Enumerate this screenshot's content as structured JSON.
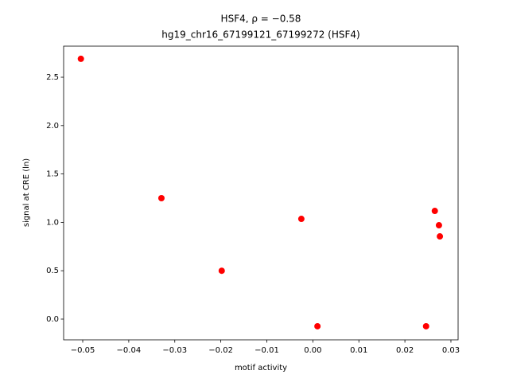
{
  "chart_data": {
    "type": "scatter",
    "title": "HSF4, ρ = −0.58",
    "subtitle": "hg19_chr16_67199121_67199272 (HSF4)",
    "x_label": "motif activity",
    "y_label": "signal at CRE (ln)",
    "color": "#ff0000",
    "x": [
      -0.0504,
      -0.0329,
      -0.0198,
      -0.0025,
      0.001,
      0.0246,
      0.0265,
      0.0274,
      0.0276
    ],
    "values": [
      2.69,
      1.25,
      0.5,
      1.036,
      -0.074,
      -0.074,
      1.118,
      0.97,
      0.855
    ],
    "xlim": [
      -0.05415,
      0.03156
    ],
    "ylim": [
      -0.214,
      2.821
    ],
    "xticks": [
      {
        "value": -0.05,
        "label": "−0.05"
      },
      {
        "value": -0.04,
        "label": "−0.04"
      },
      {
        "value": -0.03,
        "label": "−0.03"
      },
      {
        "value": -0.02,
        "label": "−0.02"
      },
      {
        "value": -0.01,
        "label": "−0.01"
      },
      {
        "value": 0,
        "label": "0.00"
      },
      {
        "value": 0.01,
        "label": "0.01"
      },
      {
        "value": 0.02,
        "label": "0.02"
      },
      {
        "value": 0.03,
        "label": "0.03"
      }
    ],
    "yticks": [
      {
        "value": 0,
        "label": "0.0"
      },
      {
        "value": 0.5,
        "label": "0.5"
      },
      {
        "value": 1,
        "label": "1.0"
      },
      {
        "value": 1.5,
        "label": "1.5"
      },
      {
        "value": 2,
        "label": "2.0"
      },
      {
        "value": 2.5,
        "label": "2.5"
      }
    ]
  }
}
